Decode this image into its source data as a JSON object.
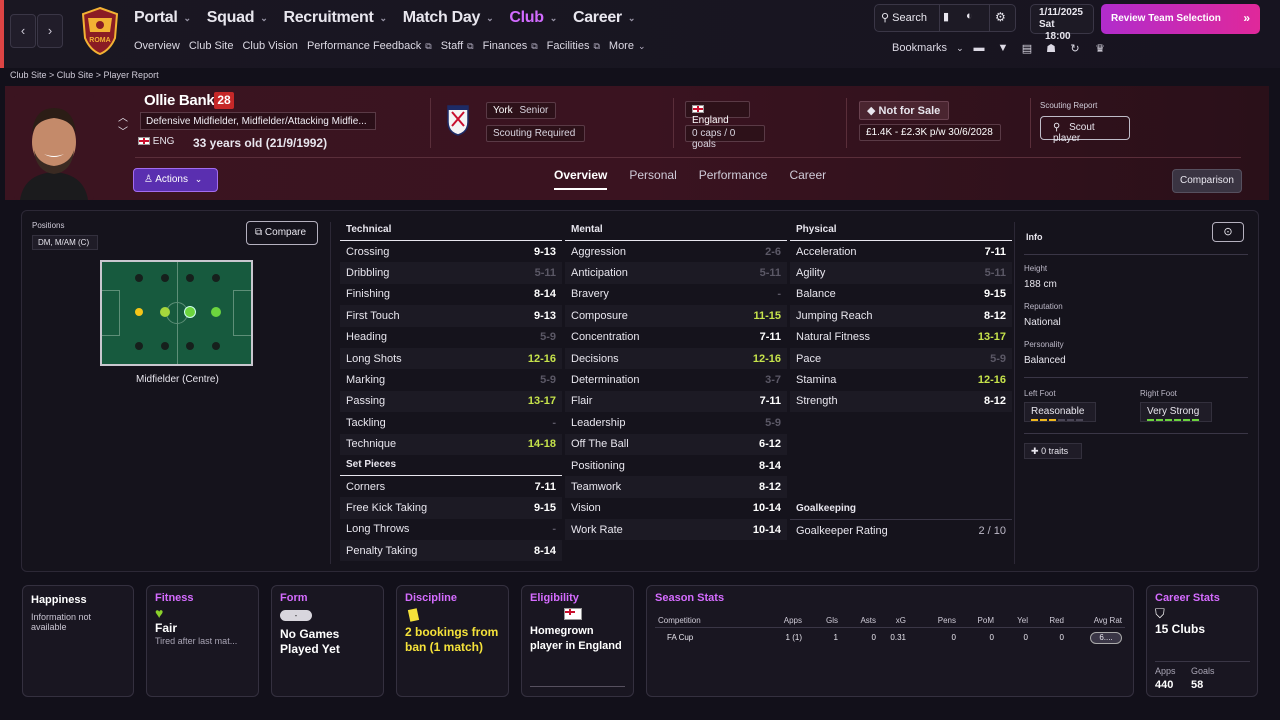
{
  "nav": {
    "main": [
      "Portal",
      "Squad",
      "Recruitment",
      "Match Day",
      "Club",
      "Career"
    ],
    "active": "Club",
    "sub": [
      "Overview",
      "Club Site",
      "Club Vision",
      "Performance Feedback",
      "Staff",
      "Finances",
      "Facilities",
      "More"
    ],
    "search": "Search",
    "date": "1/11/2025",
    "day": "Sat",
    "time": "18:00",
    "review": "Review Team Selection",
    "bookmarks": "Bookmarks"
  },
  "crest_text": "ROMA",
  "breadcrumb": "Club Site > Club Site > Player Report",
  "player": {
    "name": "Ollie Banks",
    "number": "28",
    "positions": "Defensive Midfielder, Midfielder/Attacking Midfie...",
    "nation_code": "ENG",
    "age": "33 years old (21/9/1992)",
    "club": "York",
    "club_level": "Senior",
    "scouting": "Scouting Required",
    "nation": "England",
    "caps": "0 caps / 0 goals",
    "status": "Not for Sale",
    "wage": "£1.4K - £2.3K p/w",
    "contract": "30/6/2028",
    "scout_label": "Scouting Report",
    "scout_btn": "Scout player",
    "actions": "Actions"
  },
  "tabs": [
    "Overview",
    "Personal",
    "Performance",
    "Career"
  ],
  "comparison": "Comparison",
  "positions_panel": {
    "label": "Positions",
    "badge": "DM, M/AM (C)",
    "compare": "Compare",
    "role": "Midfielder (Centre)"
  },
  "technical": {
    "title": "Technical",
    "rows": [
      {
        "n": "Crossing",
        "v": "9-13",
        "c": "w"
      },
      {
        "n": "Dribbling",
        "v": "5-11",
        "c": "d"
      },
      {
        "n": "Finishing",
        "v": "8-14",
        "c": "w"
      },
      {
        "n": "First Touch",
        "v": "9-13",
        "c": "w"
      },
      {
        "n": "Heading",
        "v": "5-9",
        "c": "d"
      },
      {
        "n": "Long Shots",
        "v": "12-16",
        "c": "g"
      },
      {
        "n": "Marking",
        "v": "5-9",
        "c": "d"
      },
      {
        "n": "Passing",
        "v": "13-17",
        "c": "g"
      },
      {
        "n": "Tackling",
        "v": "-",
        "c": "d"
      },
      {
        "n": "Technique",
        "v": "14-18",
        "c": "g"
      }
    ]
  },
  "setpieces": {
    "title": "Set Pieces",
    "rows": [
      {
        "n": "Corners",
        "v": "7-11",
        "c": "w"
      },
      {
        "n": "Free Kick Taking",
        "v": "9-15",
        "c": "w"
      },
      {
        "n": "Long Throws",
        "v": "-",
        "c": "d"
      },
      {
        "n": "Penalty Taking",
        "v": "8-14",
        "c": "w"
      }
    ]
  },
  "mental": {
    "title": "Mental",
    "rows": [
      {
        "n": "Aggression",
        "v": "2-6",
        "c": "d"
      },
      {
        "n": "Anticipation",
        "v": "5-11",
        "c": "d"
      },
      {
        "n": "Bravery",
        "v": "-",
        "c": "d"
      },
      {
        "n": "Composure",
        "v": "11-15",
        "c": "g"
      },
      {
        "n": "Concentration",
        "v": "7-11",
        "c": "w"
      },
      {
        "n": "Decisions",
        "v": "12-16",
        "c": "g"
      },
      {
        "n": "Determination",
        "v": "3-7",
        "c": "d"
      },
      {
        "n": "Flair",
        "v": "7-11",
        "c": "w"
      },
      {
        "n": "Leadership",
        "v": "5-9",
        "c": "d"
      },
      {
        "n": "Off The Ball",
        "v": "6-12",
        "c": "w"
      },
      {
        "n": "Positioning",
        "v": "8-14",
        "c": "w"
      },
      {
        "n": "Teamwork",
        "v": "8-12",
        "c": "w"
      },
      {
        "n": "Vision",
        "v": "10-14",
        "c": "w"
      },
      {
        "n": "Work Rate",
        "v": "10-14",
        "c": "w"
      }
    ]
  },
  "physical": {
    "title": "Physical",
    "rows": [
      {
        "n": "Acceleration",
        "v": "7-11",
        "c": "w"
      },
      {
        "n": "Agility",
        "v": "5-11",
        "c": "d"
      },
      {
        "n": "Balance",
        "v": "9-15",
        "c": "w"
      },
      {
        "n": "Jumping Reach",
        "v": "8-12",
        "c": "w"
      },
      {
        "n": "Natural Fitness",
        "v": "13-17",
        "c": "g"
      },
      {
        "n": "Pace",
        "v": "5-9",
        "c": "d"
      },
      {
        "n": "Stamina",
        "v": "12-16",
        "c": "g"
      },
      {
        "n": "Strength",
        "v": "8-12",
        "c": "w"
      }
    ]
  },
  "goalkeeping": {
    "title": "Goalkeeping",
    "row": {
      "n": "Goalkeeper Rating",
      "v": "2 / 10"
    }
  },
  "info": {
    "title": "Info",
    "height_label": "Height",
    "height": "188 cm",
    "rep_label": "Reputation",
    "rep": "National",
    "pers_label": "Personality",
    "pers": "Balanced",
    "lf_label": "Left Foot",
    "lf": "Reasonable",
    "lf_level": 3,
    "rf_label": "Right Foot",
    "rf": "Very Strong",
    "rf_level": 6,
    "traits": "0 traits"
  },
  "cards": {
    "happiness": {
      "title": "Happiness",
      "text": "Information not available"
    },
    "fitness": {
      "title": "Fitness",
      "big": "Fair",
      "small": "Tired after last mat..."
    },
    "form": {
      "title": "Form",
      "badge": "-",
      "big": "No Games Played Yet"
    },
    "discipline": {
      "title": "Discipline",
      "big": "2 bookings from ban (1 match)"
    },
    "eligibility": {
      "title": "Eligibility",
      "big": "Homegrown player in England"
    },
    "season": {
      "title": "Season Stats",
      "headers": [
        "Competition",
        "Apps",
        "Gls",
        "Asts",
        "xG",
        "Pens",
        "PoM",
        "Yel",
        "Red",
        "Avg Rat"
      ],
      "row": [
        "FA Cup",
        "1 (1)",
        "1",
        "0",
        "0.31",
        "0",
        "0",
        "0",
        "0",
        "6...."
      ]
    },
    "career": {
      "title": "Career Stats",
      "big": "15 Clubs",
      "apps_label": "Apps",
      "apps": "440",
      "goals_label": "Goals",
      "goals": "58"
    }
  }
}
